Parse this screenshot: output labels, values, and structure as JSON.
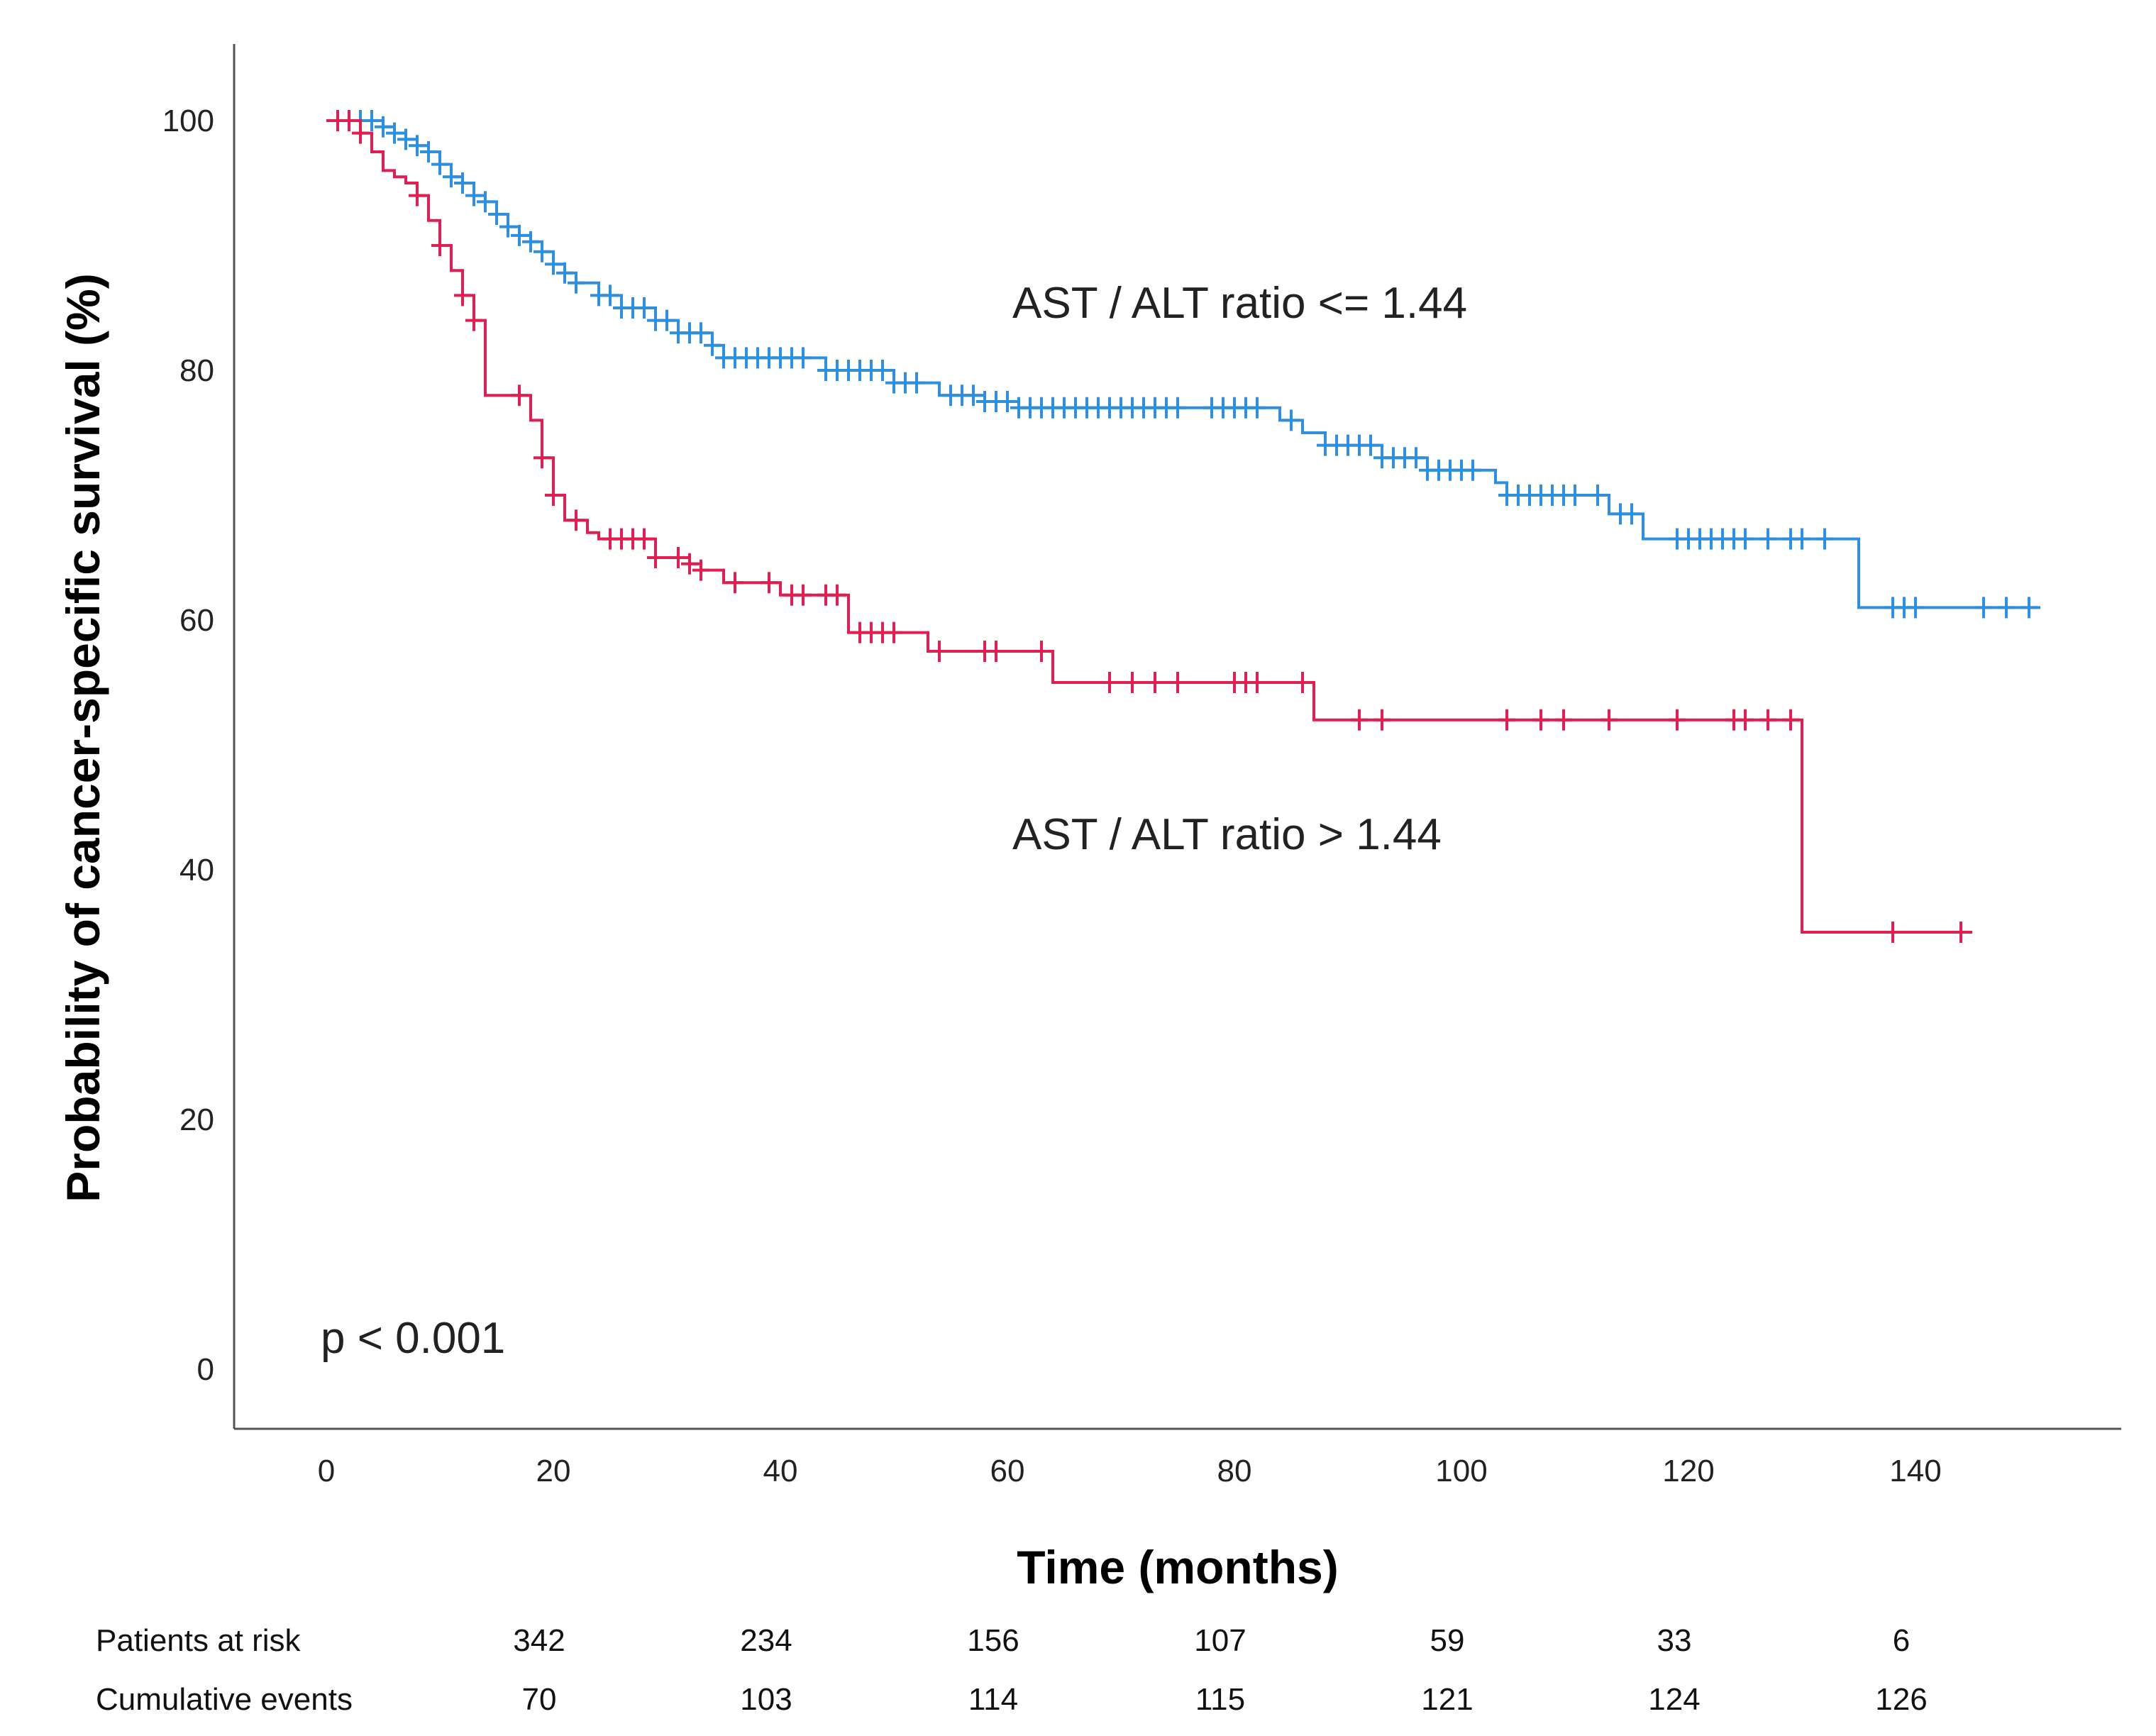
{
  "chart_data": {
    "type": "line",
    "subtype": "kaplan-meier",
    "title": "",
    "xlabel": "Time (months)",
    "ylabel": "Probability of cancer-specific survival (%)",
    "xlim": [
      -8,
      158
    ],
    "ylim": [
      -5,
      105
    ],
    "x_ticks": [
      0,
      20,
      40,
      60,
      80,
      100,
      120,
      140
    ],
    "y_ticks": [
      0,
      20,
      40,
      60,
      80,
      100
    ],
    "grid": false,
    "legend": "none",
    "annotations": {
      "p_value": "p < 0.001",
      "low_ratio_label": "AST / ALT ratio <= 1.44",
      "high_ratio_label": "AST / ALT ratio > 1.44"
    },
    "series": [
      {
        "name": "AST / ALT ratio <= 1.44",
        "color": "#2e8fe0",
        "steps": [
          [
            0,
            100
          ],
          [
            5,
            99.5
          ],
          [
            6,
            99
          ],
          [
            7,
            98.5
          ],
          [
            8,
            98
          ],
          [
            9,
            97.5
          ],
          [
            10,
            96.5
          ],
          [
            11,
            95.5
          ],
          [
            12,
            95
          ],
          [
            13,
            94
          ],
          [
            14,
            93.5
          ],
          [
            15,
            92.5
          ],
          [
            16,
            91.5
          ],
          [
            17,
            90.8
          ],
          [
            18,
            90.3
          ],
          [
            19,
            89.5
          ],
          [
            20,
            88.5
          ],
          [
            21,
            87.8
          ],
          [
            22,
            87
          ],
          [
            24,
            86
          ],
          [
            26,
            85
          ],
          [
            29,
            84
          ],
          [
            31,
            83
          ],
          [
            34,
            82
          ],
          [
            35,
            81
          ],
          [
            44,
            80
          ],
          [
            50,
            79
          ],
          [
            54,
            78
          ],
          [
            58,
            77.5
          ],
          [
            61,
            77
          ],
          [
            84,
            76
          ],
          [
            86,
            75
          ],
          [
            88,
            74
          ],
          [
            93,
            73
          ],
          [
            97,
            72
          ],
          [
            103,
            71
          ],
          [
            104,
            70
          ],
          [
            113,
            68.5
          ],
          [
            116,
            66.5
          ],
          [
            135,
            61
          ],
          [
            151,
            61
          ]
        ],
        "censor_x": [
          3,
          4,
          5,
          6,
          7,
          8,
          9,
          10,
          11,
          12,
          13,
          14,
          15,
          16,
          17,
          18,
          19,
          20,
          21,
          22,
          24,
          25,
          26,
          27,
          28,
          29,
          30,
          31,
          32,
          33,
          34,
          35,
          36,
          37,
          38,
          39,
          40,
          41,
          42,
          44,
          45,
          46,
          47,
          48,
          49,
          50,
          51,
          52,
          55,
          56,
          57,
          58,
          59,
          60,
          61,
          62,
          63,
          64,
          65,
          66,
          67,
          68,
          69,
          70,
          71,
          72,
          73,
          74,
          75,
          78,
          79,
          80,
          81,
          82,
          85,
          88,
          89,
          90,
          91,
          92,
          93,
          94,
          95,
          96,
          97,
          98,
          99,
          100,
          101,
          104,
          105,
          106,
          107,
          108,
          109,
          110,
          112,
          114,
          115,
          119,
          120,
          121,
          122,
          123,
          124,
          125,
          127,
          129,
          130,
          132,
          138,
          139,
          140,
          146,
          148,
          150
        ]
      },
      {
        "name": "AST / ALT ratio > 1.44",
        "color": "#e01e50",
        "steps": [
          [
            0,
            100
          ],
          [
            3,
            99
          ],
          [
            4,
            97.5
          ],
          [
            5,
            96
          ],
          [
            6,
            95.5
          ],
          [
            7,
            95
          ],
          [
            8,
            94
          ],
          [
            9,
            92
          ],
          [
            10,
            90
          ],
          [
            11,
            88
          ],
          [
            12,
            86
          ],
          [
            13,
            84
          ],
          [
            14,
            78
          ],
          [
            18,
            76
          ],
          [
            19,
            73
          ],
          [
            20,
            70
          ],
          [
            21,
            68
          ],
          [
            23,
            67
          ],
          [
            24,
            66.5
          ],
          [
            29,
            65
          ],
          [
            32,
            64.5
          ],
          [
            33,
            64
          ],
          [
            35,
            63
          ],
          [
            40,
            62
          ],
          [
            46,
            59
          ],
          [
            53,
            57.5
          ],
          [
            64,
            55
          ],
          [
            87,
            52
          ],
          [
            130,
            35
          ],
          [
            145,
            35
          ]
        ],
        "censor_x": [
          1,
          2,
          3,
          8,
          10,
          12,
          13,
          17,
          19,
          20,
          22,
          25,
          26,
          27,
          28,
          29,
          31,
          32,
          33,
          36,
          39,
          41,
          42,
          44,
          45,
          47,
          48,
          49,
          50,
          54,
          58,
          59,
          63,
          69,
          71,
          73,
          75,
          80,
          81,
          82,
          86,
          91,
          93,
          104,
          107,
          109,
          113,
          119,
          124,
          125,
          127,
          129,
          138,
          144
        ]
      }
    ],
    "risk_table": {
      "rows": [
        {
          "label": "Patients at risk",
          "values": [
            "342",
            "234",
            "156",
            "107",
            "59",
            "33",
            "6"
          ]
        },
        {
          "label": "Cumulative events",
          "values": [
            "70",
            "103",
            "114",
            "115",
            "121",
            "124",
            "126"
          ]
        }
      ],
      "x_positions": [
        20,
        40,
        60,
        80,
        100,
        120,
        140
      ]
    }
  }
}
